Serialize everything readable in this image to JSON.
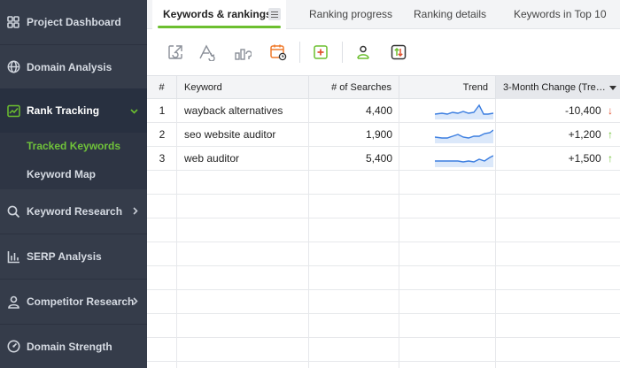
{
  "sidebar": {
    "items": [
      {
        "label": "Project Dashboard",
        "icon": "dashboard-icon"
      },
      {
        "label": "Domain Analysis",
        "icon": "globe-icon"
      },
      {
        "label": "Rank Tracking",
        "icon": "chart-line-icon"
      },
      {
        "label": "Keyword Research",
        "icon": "search-icon"
      },
      {
        "label": "SERP Analysis",
        "icon": "bar-chart-icon"
      },
      {
        "label": "Competitor Research",
        "icon": "person-icon"
      },
      {
        "label": "Domain Strength",
        "icon": "gauge-icon"
      }
    ],
    "subitems": [
      {
        "label": "Tracked Keywords"
      },
      {
        "label": "Keyword Map"
      }
    ]
  },
  "tabs": [
    {
      "label": "Keywords & rankings"
    },
    {
      "label": "Ranking progress"
    },
    {
      "label": "Ranking details"
    },
    {
      "label": "Keywords in Top 10"
    }
  ],
  "toolbar": {
    "icons": [
      "refresh-rankings-icon",
      "recheck-icon",
      "chart-compare-icon",
      "schedule-icon",
      "add-keyword-icon",
      "competitors-icon",
      "import-export-icon"
    ]
  },
  "table": {
    "headers": [
      "#",
      "Keyword",
      "# of Searches",
      "Trend",
      "3-Month Change (Tre…"
    ],
    "rows": [
      {
        "num": "1",
        "keyword": "wayback alternatives",
        "searches": "4,400",
        "change": "-10,400",
        "arrow": "↓",
        "direction": "down"
      },
      {
        "num": "2",
        "keyword": "seo website auditor",
        "searches": "1,900",
        "change": "+1,200",
        "arrow": "↑",
        "direction": "up"
      },
      {
        "num": "3",
        "keyword": "web auditor",
        "searches": "5,400",
        "change": "+1,500",
        "arrow": "↑",
        "direction": "up"
      }
    ]
  },
  "colors": {
    "accent": "#6cbf2f",
    "down": "#e0502e",
    "sparkline": "#3a7de0",
    "sidebar_bg": "#353c4a"
  }
}
